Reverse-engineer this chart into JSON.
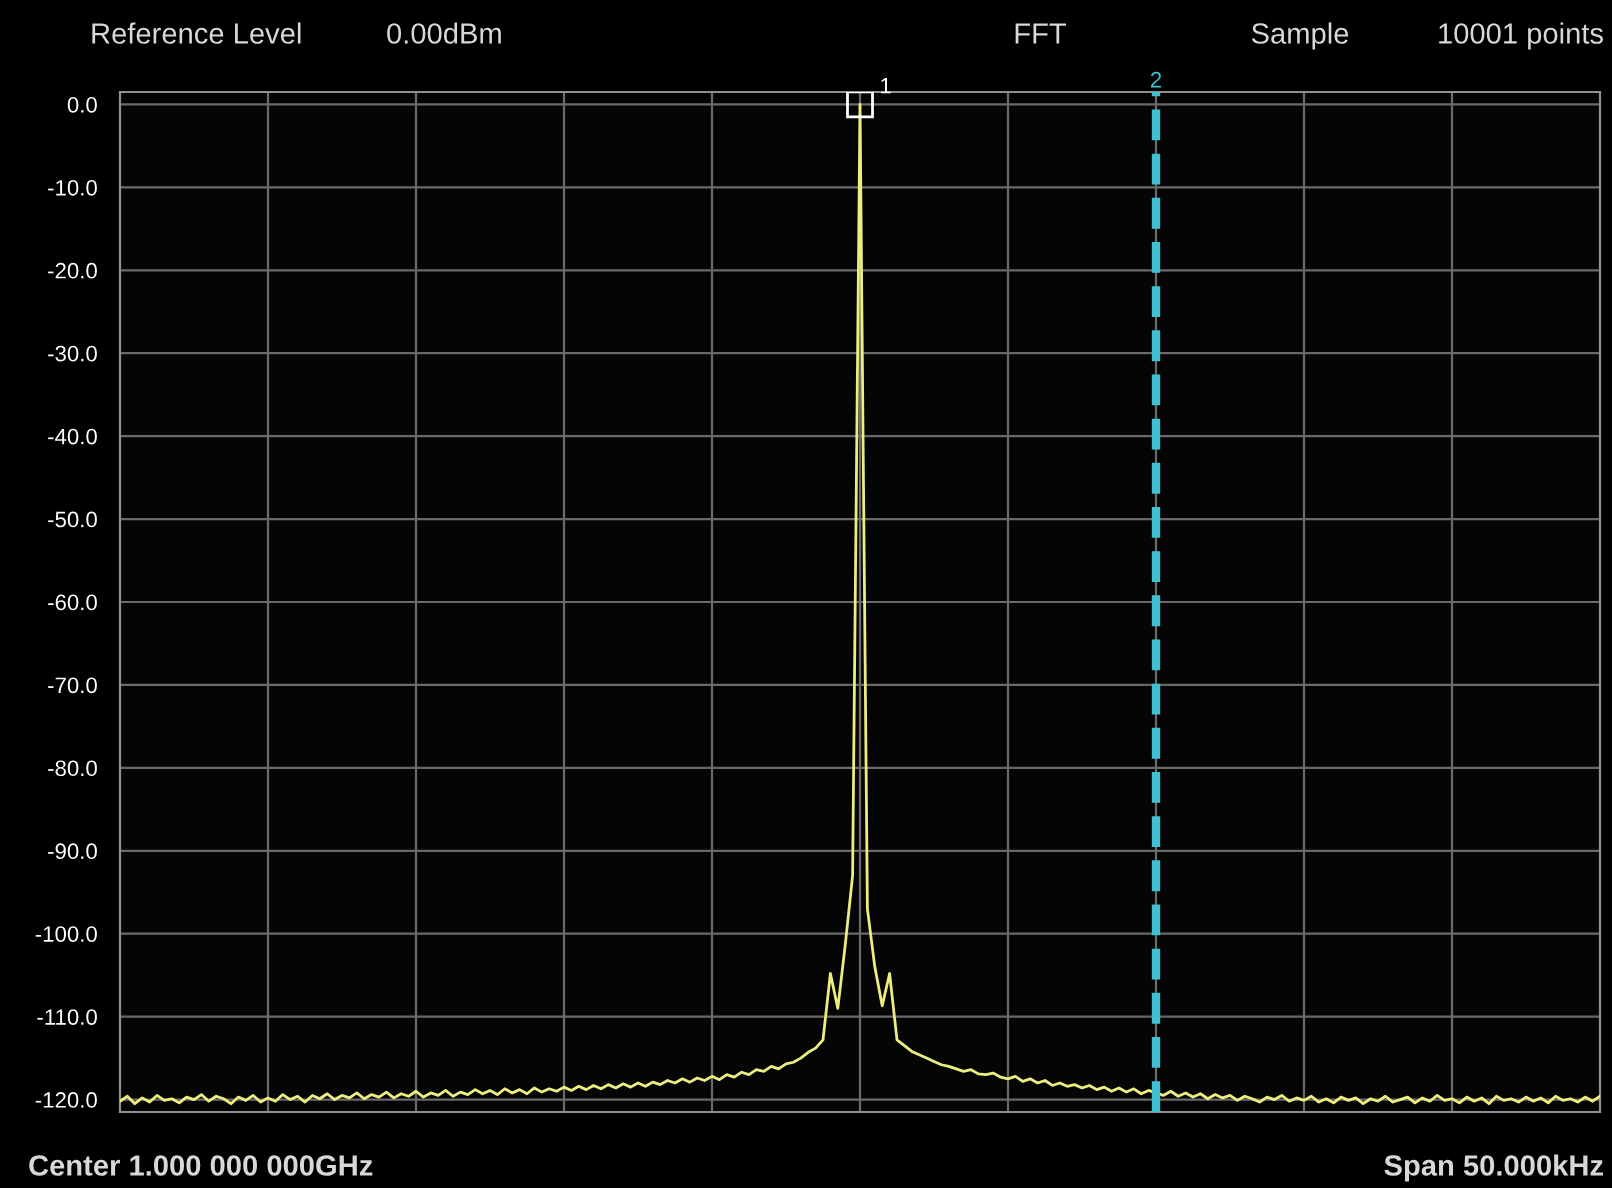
{
  "chart_data": {
    "type": "line",
    "annotations": [
      "Reference Level",
      "0.00dBm",
      "FFT",
      "Sample",
      "10001 points",
      "Center 1.000 000 000GHz",
      "Span 50.000kHz",
      "1",
      "2"
    ],
    "categories": [
      null,
      null,
      null,
      null,
      null,
      null,
      null,
      null,
      null,
      null,
      null,
      null,
      null,
      null,
      null,
      null,
      null,
      null,
      null,
      null,
      null,
      null,
      null,
      null,
      null,
      null,
      null,
      null,
      null,
      null,
      null,
      null,
      null,
      null,
      null,
      null,
      null,
      null,
      null,
      null,
      null,
      null,
      null,
      null,
      null,
      null,
      null,
      null,
      null,
      null,
      null,
      null,
      null,
      null,
      null,
      null,
      null,
      null,
      null,
      null,
      null,
      null,
      null,
      null,
      null,
      null,
      null,
      null,
      null,
      null,
      null,
      null,
      null,
      null,
      null,
      null,
      null,
      null,
      null,
      null,
      null,
      null,
      null,
      null,
      null,
      null,
      null,
      null,
      null,
      null,
      null,
      null,
      null,
      null,
      null,
      null,
      null,
      null,
      null,
      null,
      null,
      null,
      null,
      null,
      null,
      null,
      null,
      null,
      null,
      null,
      null,
      null,
      null,
      null,
      null,
      null,
      null,
      null,
      null,
      null,
      null,
      null,
      null,
      null,
      null,
      null,
      null,
      null,
      null,
      null,
      null,
      null,
      null,
      null,
      null,
      null,
      null,
      null,
      null,
      null,
      null,
      null,
      null,
      null,
      null,
      null,
      null,
      null,
      null,
      null,
      null,
      null,
      null,
      null,
      null,
      null,
      null,
      null,
      null,
      null,
      null,
      null,
      null,
      null,
      null,
      null,
      null,
      null,
      null,
      null,
      null,
      null,
      null,
      null,
      null,
      null,
      null,
      null,
      null,
      null,
      null,
      null,
      null,
      null,
      null,
      null,
      null,
      null,
      null,
      null,
      null,
      null,
      null,
      null,
      null,
      null,
      null,
      null,
      null,
      null,
      null
    ],
    "series": [
      {
        "color": "#eeee80",
        "values": [
          -120.2,
          -119.6,
          -120.5,
          -119.8,
          -120.3,
          -119.5,
          -120.1,
          -119.9,
          -120.4,
          -119.7,
          -120.0,
          -119.4,
          -120.2,
          -119.6,
          -119.9,
          -120.5,
          -119.7,
          -120.1,
          -119.5,
          -120.3,
          -119.8,
          -120.2,
          -119.4,
          -120.0,
          -119.6,
          -120.3,
          -119.5,
          -119.9,
          -119.3,
          -120.0,
          -119.5,
          -119.8,
          -119.2,
          -119.9,
          -119.4,
          -119.7,
          -119.1,
          -119.8,
          -119.3,
          -119.6,
          -119.0,
          -119.7,
          -119.2,
          -119.5,
          -118.9,
          -119.6,
          -119.1,
          -119.4,
          -118.8,
          -119.3,
          -118.9,
          -119.4,
          -118.7,
          -119.2,
          -118.8,
          -119.3,
          -118.6,
          -119.1,
          -118.7,
          -119.0,
          -118.5,
          -118.9,
          -118.4,
          -118.8,
          -118.3,
          -118.7,
          -118.2,
          -118.6,
          -118.1,
          -118.5,
          -118.0,
          -118.4,
          -117.9,
          -118.2,
          -117.7,
          -118.0,
          -117.5,
          -117.9,
          -117.4,
          -117.7,
          -117.2,
          -117.6,
          -117.0,
          -117.3,
          -116.7,
          -117.0,
          -116.4,
          -116.6,
          -116.0,
          -116.3,
          -115.7,
          -115.5,
          -115.0,
          -114.3,
          -113.8,
          -112.8,
          -104.8,
          -109.0,
          -101.4,
          -93.0,
          0,
          -97.0,
          -104.0,
          -108.7,
          -104.8,
          -112.8,
          -113.5,
          -114.2,
          -114.6,
          -115.0,
          -115.4,
          -115.8,
          -116.0,
          -116.3,
          -116.6,
          -116.4,
          -116.9,
          -117.0,
          -116.8,
          -117.3,
          -117.5,
          -117.2,
          -117.8,
          -117.5,
          -118.0,
          -117.7,
          -118.3,
          -118.0,
          -118.4,
          -118.2,
          -118.6,
          -118.3,
          -118.8,
          -118.5,
          -119.0,
          -118.6,
          -119.1,
          -118.7,
          -119.3,
          -118.9,
          -119.2,
          -119.5,
          -119.0,
          -119.6,
          -119.2,
          -119.7,
          -119.3,
          -119.9,
          -119.4,
          -119.8,
          -119.5,
          -120.1,
          -119.6,
          -119.9,
          -120.3,
          -119.7,
          -120.0,
          -119.5,
          -120.2,
          -119.8,
          -120.1,
          -119.6,
          -120.3,
          -119.9,
          -120.4,
          -119.7,
          -120.1,
          -119.8,
          -120.5,
          -119.9,
          -120.2,
          -119.6,
          -120.3,
          -120.0,
          -119.7,
          -120.4,
          -119.8,
          -120.2,
          -119.5,
          -120.1,
          -119.9,
          -120.4,
          -119.7,
          -120.2,
          -119.8,
          -120.5,
          -119.6,
          -120.1,
          -119.9,
          -120.3,
          -119.7,
          -120.2,
          -119.8,
          -120.4,
          -119.6,
          -120.1,
          -119.9,
          -120.3,
          -119.7,
          -120.2,
          -119.6
        ]
      }
    ],
    "ylim": [
      -121.5,
      1.5
    ],
    "yticks": [
      {
        "value": 0,
        "label": "0.0"
      },
      {
        "value": -10,
        "label": "-10.0"
      },
      {
        "value": -20,
        "label": "-20.0"
      },
      {
        "value": -30,
        "label": "-30.0"
      },
      {
        "value": -40,
        "label": "-40.0"
      },
      {
        "value": -50,
        "label": "-50.0"
      },
      {
        "value": -60,
        "label": "-60.0"
      },
      {
        "value": -70,
        "label": "-70.0"
      },
      {
        "value": -80,
        "label": "-80.0"
      },
      {
        "value": -90,
        "label": "-90.0"
      },
      {
        "value": -100,
        "label": "-100.0"
      },
      {
        "value": -110,
        "label": "-110.0"
      },
      {
        "value": -120,
        "label": "-120.0"
      }
    ],
    "grid": true,
    "tick_labels": "y",
    "line_style": "solid"
  }
}
